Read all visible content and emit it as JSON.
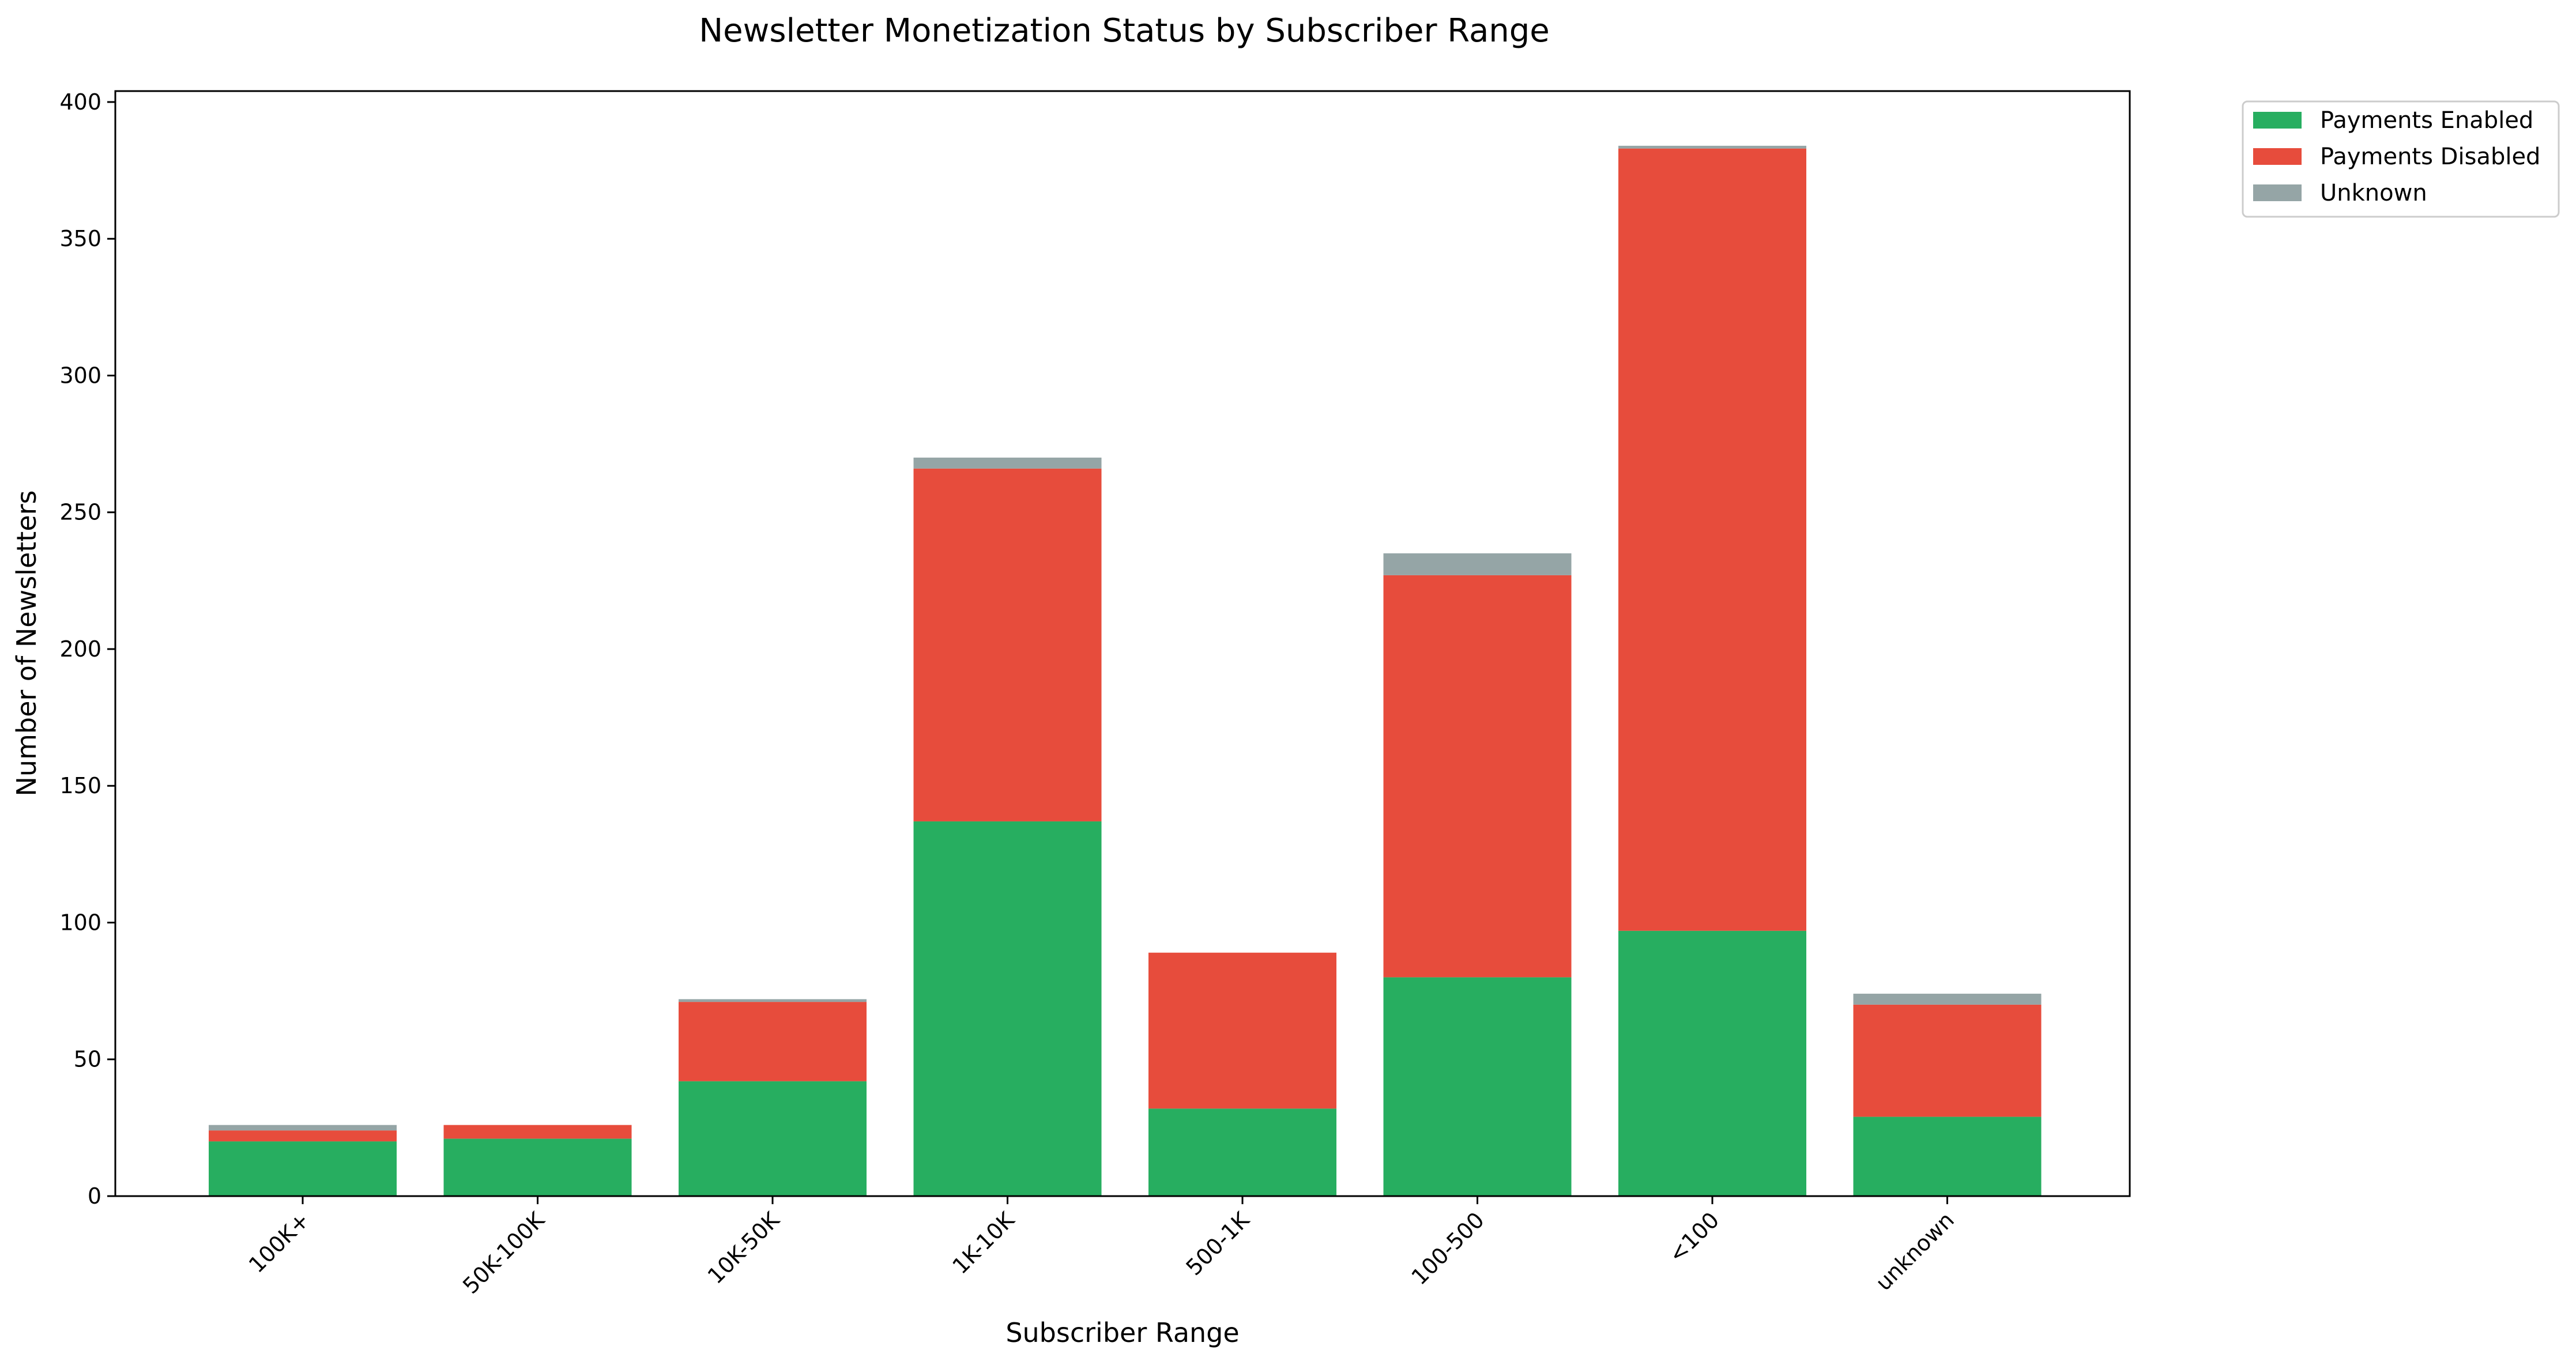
{
  "chart_data": {
    "type": "bar",
    "stacked": true,
    "title": "Newsletter Monetization Status by Subscriber Range",
    "xlabel": "Subscriber Range",
    "ylabel": "Number of Newsletters",
    "categories": [
      "100K+",
      "50K-100K",
      "10K-50K",
      "1K-10K",
      "500-1K",
      "100-500",
      "<100",
      "unknown"
    ],
    "series": [
      {
        "name": "Payments Enabled",
        "color": "#27ae60",
        "values": [
          20,
          21,
          42,
          137,
          32,
          80,
          97,
          29
        ]
      },
      {
        "name": "Payments Disabled",
        "color": "#e74c3c",
        "values": [
          4,
          5,
          29,
          129,
          57,
          147,
          286,
          41
        ]
      },
      {
        "name": "Unknown",
        "color": "#95a5a6",
        "values": [
          2,
          0,
          1,
          4,
          0,
          8,
          1,
          4
        ]
      }
    ],
    "ylim": [
      0,
      404
    ],
    "yticks": [
      0,
      50,
      100,
      150,
      200,
      250,
      300,
      350,
      400
    ],
    "grid": false,
    "legend_position": "outside top-right"
  }
}
